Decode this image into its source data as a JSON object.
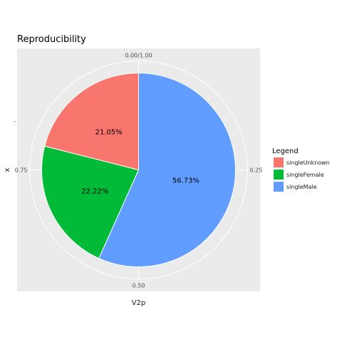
{
  "chart_data": {
    "type": "pie",
    "title": "Reproducibility",
    "xlabel": "V2p",
    "ylabel": "x",
    "y_tick": "-",
    "angle_ticks": [
      {
        "value": 0,
        "label": "0.00/1.00"
      },
      {
        "value": 0.25,
        "label": "0.25"
      },
      {
        "value": 0.5,
        "label": "0.50"
      },
      {
        "value": 0.75,
        "label": "0.75"
      }
    ],
    "slices": [
      {
        "name": "singleMale",
        "value": 56.73,
        "label": "56.73%",
        "color": "#619CFF"
      },
      {
        "name": "singleFemale",
        "value": 22.22,
        "label": "22.22%",
        "color": "#00BA38"
      },
      {
        "name": "singleUnknown",
        "value": 21.05,
        "label": "21.05%",
        "color": "#F8766D"
      }
    ],
    "legend": {
      "title": "Legend",
      "placement": "right",
      "items": [
        {
          "label": "singleUnknown",
          "color": "#F8766D"
        },
        {
          "label": "singleFemale",
          "color": "#00BA38"
        },
        {
          "label": "singleMale",
          "color": "#619CFF"
        }
      ]
    },
    "panel_background": "#EBEBEB",
    "grid_color": "#FFFFFF",
    "grid": true
  }
}
